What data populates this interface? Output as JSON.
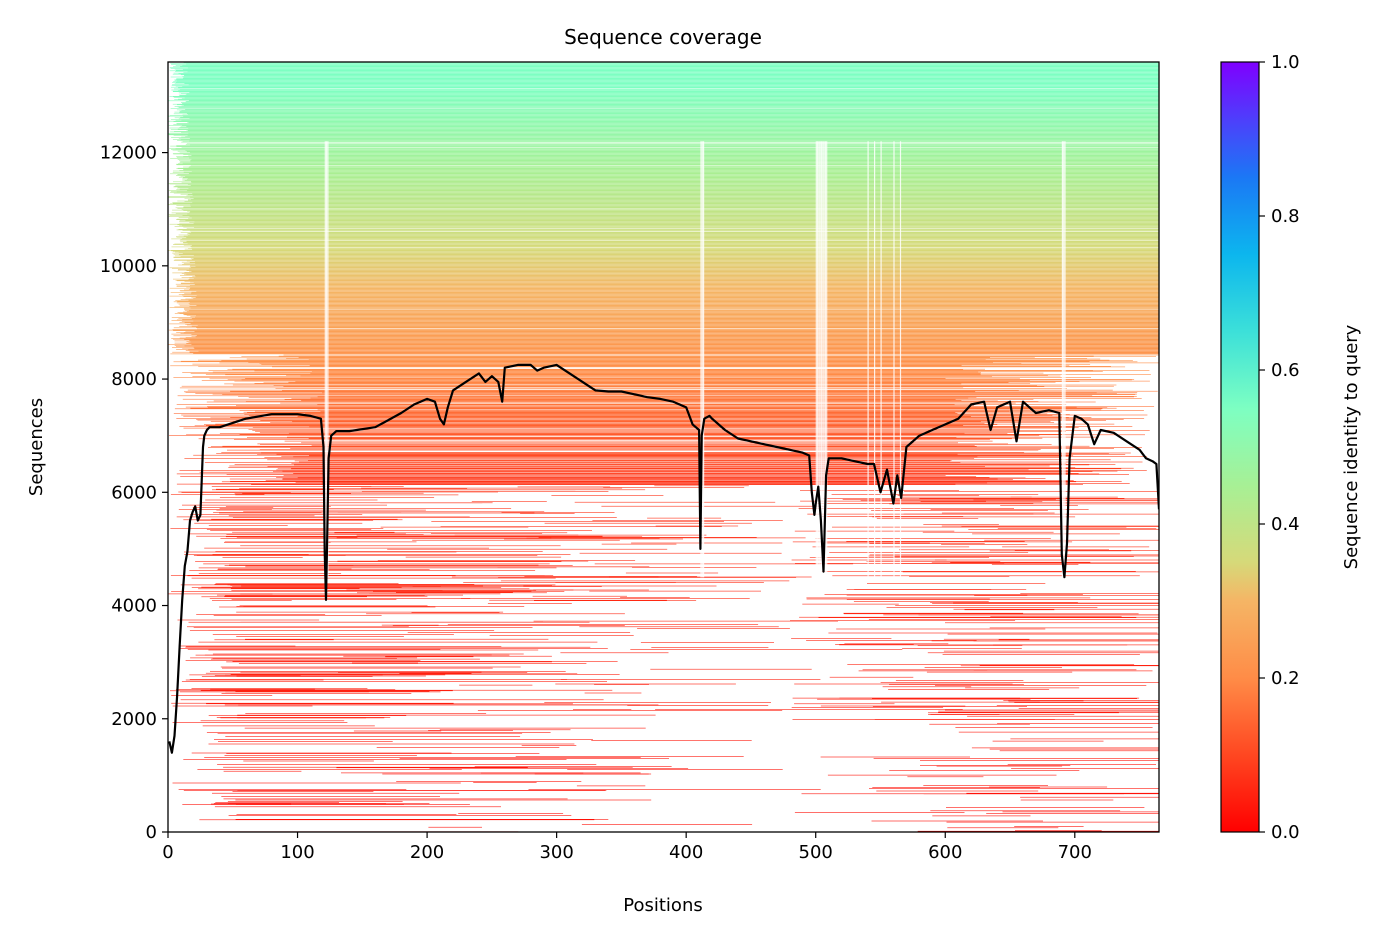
{
  "chart_data": {
    "type": "heatmap",
    "title": "Sequence coverage",
    "xlabel": "Positions",
    "ylabel": "Sequences",
    "xlim": [
      0,
      765
    ],
    "ylim": [
      0,
      13600
    ],
    "xticks": [
      0,
      100,
      200,
      300,
      400,
      500,
      600,
      700
    ],
    "yticks": [
      0,
      2000,
      4000,
      6000,
      8000,
      10000,
      12000
    ],
    "colorbar": {
      "label": "Sequence identity to query",
      "range": [
        0.0,
        1.0
      ],
      "ticks": [
        "0.0",
        "0.2",
        "0.4",
        "0.6",
        "0.8",
        "1.0"
      ],
      "colormap": "rainbow_r",
      "colors": [
        "#ff0000",
        "#ff8c47",
        "#d6d979",
        "#7dffc2",
        "#1b9be8",
        "#7f00ff"
      ]
    },
    "coverage_line": {
      "color": "#000000",
      "x": [
        1,
        3,
        5,
        7,
        9,
        11,
        13,
        15,
        17,
        19,
        21,
        23,
        25,
        27,
        28,
        30,
        32,
        34,
        40,
        60,
        80,
        90,
        100,
        110,
        118,
        120,
        121,
        122,
        123,
        124,
        126,
        130,
        140,
        160,
        180,
        190,
        200,
        206,
        210,
        213,
        216,
        220,
        230,
        240,
        245,
        250,
        255,
        258,
        260,
        270,
        280,
        285,
        290,
        300,
        310,
        320,
        330,
        340,
        350,
        360,
        370,
        380,
        390,
        400,
        405,
        410,
        411,
        412,
        414,
        418,
        420,
        430,
        440,
        450,
        460,
        470,
        480,
        490,
        495,
        497,
        499,
        500,
        502,
        504,
        506,
        508,
        510,
        520,
        530,
        540,
        545,
        550,
        555,
        560,
        563,
        566,
        570,
        580,
        590,
        600,
        610,
        620,
        630,
        635,
        640,
        650,
        655,
        660,
        665,
        670,
        680,
        688,
        690,
        692,
        694,
        696,
        700,
        705,
        710,
        715,
        720,
        730,
        740,
        750,
        755,
        760,
        763,
        765
      ],
      "y": [
        1600,
        1400,
        1700,
        2400,
        3300,
        4100,
        4700,
        4950,
        5500,
        5650,
        5750,
        5500,
        5600,
        6800,
        7000,
        7100,
        7150,
        7150,
        7150,
        7300,
        7380,
        7380,
        7380,
        7350,
        7300,
        6800,
        4950,
        4100,
        5300,
        6600,
        7000,
        7080,
        7080,
        7150,
        7400,
        7550,
        7650,
        7600,
        7300,
        7200,
        7500,
        7800,
        7950,
        8100,
        7950,
        8050,
        7950,
        7600,
        8200,
        8250,
        8250,
        8150,
        8200,
        8250,
        8100,
        7950,
        7800,
        7780,
        7780,
        7730,
        7680,
        7650,
        7600,
        7500,
        7200,
        7100,
        5000,
        7000,
        7300,
        7350,
        7300,
        7100,
        6950,
        6900,
        6850,
        6800,
        6750,
        6700,
        6650,
        6000,
        5600,
        5800,
        6100,
        5500,
        4600,
        6300,
        6600,
        6600,
        6550,
        6500,
        6500,
        6000,
        6400,
        5800,
        6300,
        5900,
        6800,
        7000,
        7100,
        7200,
        7300,
        7550,
        7600,
        7100,
        7500,
        7600,
        6900,
        7600,
        7500,
        7400,
        7450,
        7400,
        4900,
        4500,
        5100,
        6600,
        7350,
        7300,
        7200,
        6850,
        7100,
        7050,
        6900,
        6750,
        6600,
        6550,
        6500,
        5700
      ]
    },
    "band_density": [
      {
        "from": 0,
        "to": 2000,
        "density": 0.3
      },
      {
        "from": 2000,
        "to": 4000,
        "density": 0.4
      },
      {
        "from": 4000,
        "to": 6000,
        "density": 0.55
      },
      {
        "from": 6000,
        "to": 7000,
        "density": 0.7
      },
      {
        "from": 7000,
        "to": 8500,
        "density": 0.85
      },
      {
        "from": 8500,
        "to": 13600,
        "density": 0.97
      }
    ],
    "gap_columns": [
      121,
      122,
      123,
      411,
      412,
      413,
      500,
      501,
      502,
      503,
      504,
      505,
      506,
      507,
      508,
      540,
      545,
      550,
      560,
      565,
      690,
      691,
      692
    ]
  }
}
